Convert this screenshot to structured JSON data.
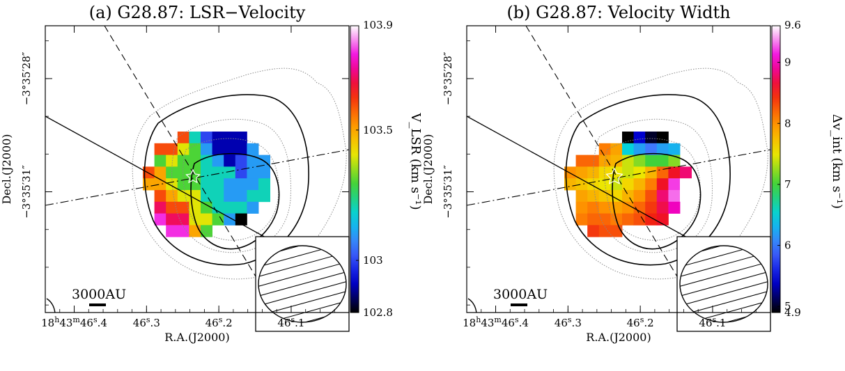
{
  "chart_data": [
    {
      "type": "heatmap",
      "title": "(a) G28.87: LSR−Velocity",
      "xlabel": "R.A.(J2000)",
      "ylabel": "Decl.(J2000)",
      "x_ticks": [
        {
          "value": 46.4,
          "label": "18h43m46s.4",
          "parts": [
            "18",
            "h",
            "43",
            "m",
            "46",
            "s",
            ".4"
          ]
        },
        {
          "value": 46.3,
          "label": "46s.3",
          "parts": [
            "46",
            "s",
            ".3"
          ]
        },
        {
          "value": 46.2,
          "label": "46s.2",
          "parts": [
            "46",
            "s",
            ".2"
          ]
        },
        {
          "value": 46.1,
          "label": "46s.1",
          "parts": [
            "46",
            "s",
            ".1"
          ]
        }
      ],
      "xlim": [
        46.44,
        46.02
      ],
      "y_ticks": [
        {
          "value": 28,
          "label": "−3°35′28″"
        },
        {
          "value": 31,
          "label": "−3°35′31″"
        }
      ],
      "ylim": [
        34.2,
        26.6
      ],
      "colorbar": {
        "label": "V_LSR (km s⁻¹)",
        "min": 102.8,
        "max": 103.9,
        "min_label": "102.8",
        "max_label": "103.9",
        "ticks": [
          103,
          103.5
        ],
        "tick_labels": [
          "103",
          "103.5"
        ],
        "colormap": "rainbow"
      },
      "grid": [
        [
          null,
          null,
          103.9,
          103.6,
          103.2,
          103.0,
          102.9,
          102.9,
          102.9,
          null,
          null,
          null
        ],
        [
          null,
          103.6,
          103.6,
          103.4,
          103.3,
          103.1,
          102.9,
          102.9,
          102.9,
          103.1,
          null,
          null
        ],
        [
          null,
          103.3,
          103.4,
          103.3,
          103.3,
          103.2,
          103.1,
          102.9,
          103.0,
          103.1,
          103.1,
          null
        ],
        [
          103.6,
          103.5,
          103.3,
          103.3,
          103.3,
          103.2,
          103.2,
          103.2,
          103.0,
          103.1,
          103.1,
          null
        ],
        [
          103.5,
          103.5,
          103.4,
          103.3,
          103.3,
          103.2,
          103.2,
          103.1,
          103.1,
          103.1,
          103.2,
          null
        ],
        [
          null,
          103.6,
          103.5,
          103.4,
          103.4,
          103.2,
          103.2,
          103.1,
          103.1,
          103.2,
          103.2,
          null
        ],
        [
          null,
          103.7,
          103.6,
          103.6,
          103.4,
          103.3,
          103.2,
          103.2,
          103.2,
          103.1,
          null,
          null
        ],
        [
          null,
          103.8,
          103.7,
          103.7,
          103.4,
          103.4,
          103.3,
          103.1,
          102.8,
          null,
          null,
          null
        ],
        [
          null,
          null,
          103.8,
          103.8,
          103.5,
          103.3,
          null,
          null,
          null,
          null,
          null,
          null
        ]
      ],
      "scale_bar": "3000AU"
    },
    {
      "type": "heatmap",
      "title": "(b) G28.87: Velocity Width",
      "xlabel": "R.A.(J2000)",
      "ylabel": "Decl.(J2000)",
      "x_ticks": [
        {
          "value": 46.4,
          "label": "18h43m46s.4",
          "parts": [
            "18",
            "h",
            "43",
            "m",
            "46",
            "s",
            ".4"
          ]
        },
        {
          "value": 46.3,
          "label": "46s.3",
          "parts": [
            "46",
            "s",
            ".3"
          ]
        },
        {
          "value": 46.2,
          "label": "46s.2",
          "parts": [
            "46",
            "s",
            ".2"
          ]
        },
        {
          "value": 46.1,
          "label": "46s.1",
          "parts": [
            "46",
            "s",
            ".1"
          ]
        }
      ],
      "xlim": [
        46.44,
        46.02
      ],
      "y_ticks": [
        {
          "value": 28,
          "label": "−3°35′28″"
        },
        {
          "value": 31,
          "label": "−3°35′31″"
        }
      ],
      "ylim": [
        34.2,
        26.6
      ],
      "colorbar": {
        "label": "Δv_int (km s⁻¹)",
        "min": 4.9,
        "max": 9.6,
        "min_label": "4.9",
        "max_label": "9.6",
        "ticks": [
          5,
          6,
          7,
          8,
          9
        ],
        "tick_labels": [
          "5",
          "6",
          "7",
          "8",
          "9"
        ],
        "colormap": "rainbow"
      },
      "grid": [
        [
          null,
          null,
          null,
          null,
          null,
          4.9,
          5.4,
          5.0,
          4.9,
          null,
          null,
          null
        ],
        [
          null,
          null,
          null,
          8.1,
          7.9,
          6.5,
          6.2,
          6.0,
          6.2,
          6.3,
          null,
          null
        ],
        [
          null,
          8.2,
          8.2,
          7.9,
          7.8,
          7.4,
          7.2,
          7.0,
          7.0,
          7.2,
          null,
          null
        ],
        [
          8.0,
          7.9,
          7.8,
          7.6,
          7.5,
          7.4,
          7.5,
          7.8,
          8.2,
          8.6,
          8.8,
          null
        ],
        [
          7.8,
          7.7,
          7.6,
          7.5,
          7.4,
          7.6,
          7.8,
          8.1,
          8.6,
          9.2,
          9.6,
          null
        ],
        [
          null,
          7.9,
          7.8,
          7.7,
          7.6,
          7.8,
          8.0,
          8.3,
          8.8,
          9.3,
          9.6,
          null
        ],
        [
          null,
          8.0,
          8.1,
          8.0,
          7.9,
          8.0,
          8.2,
          8.4,
          8.7,
          9.0,
          null,
          null
        ],
        [
          null,
          8.1,
          8.2,
          8.2,
          8.1,
          8.2,
          8.3,
          8.5,
          8.6,
          null,
          null,
          null
        ],
        [
          null,
          null,
          8.4,
          8.3,
          8.3,
          null,
          null,
          null,
          null,
          null,
          null,
          null
        ]
      ],
      "scale_bar": "3000AU"
    }
  ]
}
